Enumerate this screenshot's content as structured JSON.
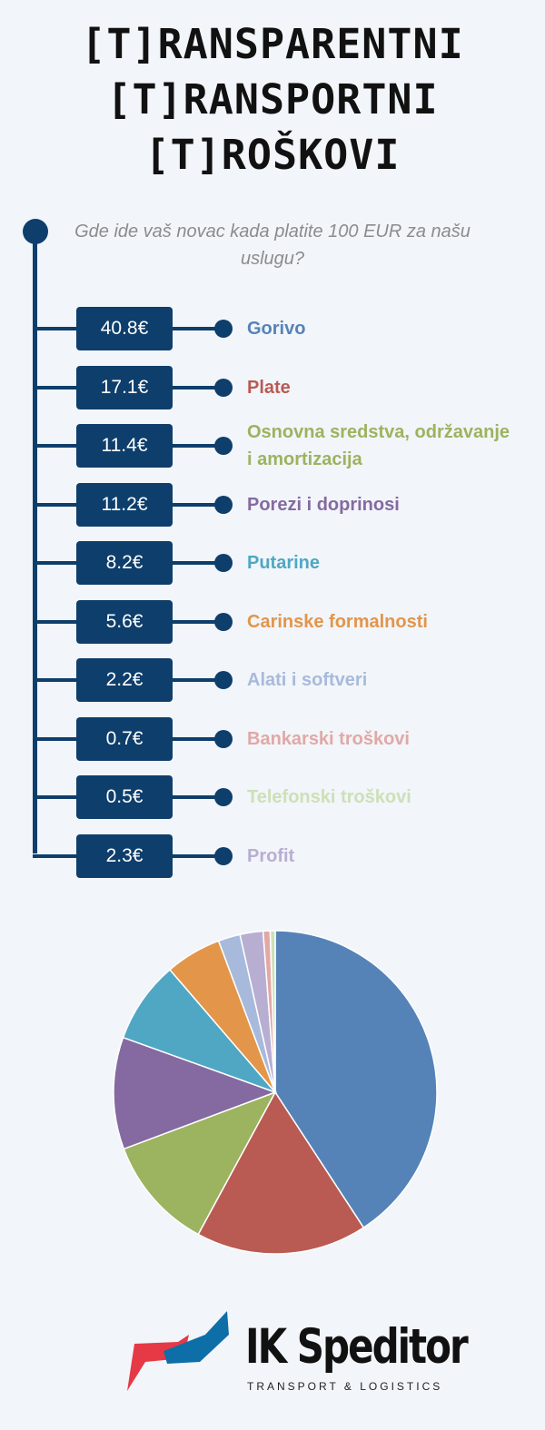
{
  "title_lines": [
    "[T]RANSPARENTNI",
    "[T]RANSPORTNI",
    "[T]ROŠKOVI"
  ],
  "question": "Gde ide vaš novac kada platite 100 EUR za našu uslugu?",
  "brand": {
    "name": "IK Speditor",
    "tagline": "TRANSPORT & LOGISTICS"
  },
  "colors": {
    "accent": "#0e3e6b"
  },
  "chart_data": {
    "type": "pie",
    "title": "",
    "categories": [
      "Gorivo",
      "Plate",
      "Osnovna sredstva, održavanje i amortizacija",
      "Porezi i doprinosi",
      "Putarine",
      "Carinske formalnosti",
      "Alati i softveri",
      "Bankarski troškovi",
      "Telefonski troškovi",
      "Profit"
    ],
    "values": [
      40.8,
      17.1,
      11.4,
      11.2,
      8.2,
      5.6,
      2.2,
      0.7,
      0.5,
      2.3
    ],
    "value_labels": [
      "40.8€",
      "17.1€",
      "11.4€",
      "11.2€",
      "8.2€",
      "5.6€",
      "2.2€",
      "0.7€",
      "0.5€",
      "2.3€"
    ],
    "colors": [
      "#5583b8",
      "#b95b52",
      "#9cb35f",
      "#846aa1",
      "#4fa7c3",
      "#e3954a",
      "#a8badc",
      "#e0a9a6",
      "#cde0b8",
      "#b8aed2"
    ],
    "pie_order": [
      0,
      1,
      2,
      3,
      4,
      5,
      6,
      9,
      7,
      8
    ],
    "legend": "left"
  }
}
